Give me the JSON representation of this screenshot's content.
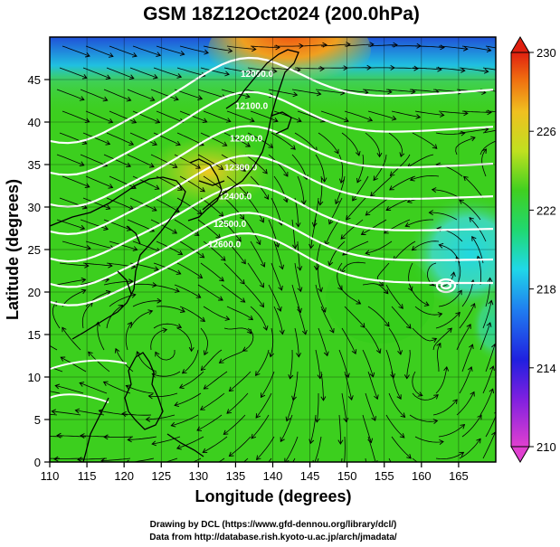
{
  "title": "GSM 18Z12Oct2024 (200.0hPa)",
  "chart_data": {
    "type": "heatmap",
    "xlabel": "Longitude (degrees)",
    "ylabel": "Latitude  (degrees)",
    "xlim": [
      110,
      170
    ],
    "ylim": [
      0,
      50
    ],
    "x_ticks": [
      "110",
      "115",
      "120",
      "125",
      "130",
      "135",
      "140",
      "145",
      "150",
      "155",
      "160",
      "165"
    ],
    "y_ticks": [
      "0",
      "5",
      "10",
      "15",
      "20",
      "25",
      "30",
      "35",
      "40",
      "45"
    ],
    "colorbar": {
      "min": 210,
      "max": 230,
      "ticks": [
        "210",
        "214",
        "218",
        "222",
        "226",
        "230"
      ]
    },
    "contour_labels": [
      "12000.0",
      "12100.0",
      "12200.0",
      "12300.0",
      "12400.0",
      "12500.0",
      "12600.0"
    ],
    "colors": {
      "cold": "#2060e0",
      "cool": "#20d8e0",
      "mid": "#40d020",
      "warm": "#e8d020",
      "hot": "#f06010"
    }
  },
  "credits": {
    "line1": "Drawing by DCL (https://www.gfd-dennou.org/library/dcl/)",
    "line2": "Data from http://database.rish.kyoto-u.ac.jp/arch/jmadata/"
  }
}
